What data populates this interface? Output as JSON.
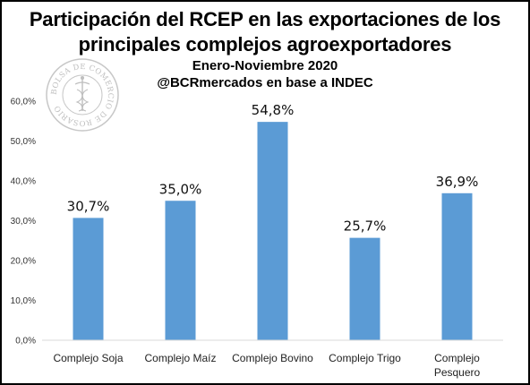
{
  "header": {
    "title_line1": "Participación del RCEP en las exportaciones de los",
    "title_line2": "principales complejos agroexportadores",
    "subtitle_line1": "Enero-Noviembre 2020",
    "subtitle_line2": "@BCRmercados en base a INDEC"
  },
  "logo": {
    "text": "BOLSA DE COMERCIO DE ROSARIO",
    "icon": "caduceus-seal-icon"
  },
  "colors": {
    "bar": "#5b9bd5",
    "axis": "#d9d9d9",
    "text": "#000000"
  },
  "chart_data": {
    "type": "bar",
    "title": "Participación del RCEP en las exportaciones de los principales complejos agroexportadores",
    "subtitle": "Enero-Noviembre 2020",
    "categories": [
      [
        "Complejo Soja"
      ],
      [
        "Complejo Maíz"
      ],
      [
        "Complejo Bovino"
      ],
      [
        "Complejo Trigo"
      ],
      [
        "Complejo",
        "Pesquero"
      ]
    ],
    "values": [
      30.7,
      35.0,
      54.8,
      25.7,
      36.9
    ],
    "data_labels": [
      "30,7%",
      "35,0%",
      "54,8%",
      "25,7%",
      "36,9%"
    ],
    "y_ticks": [
      "0,0%",
      "10,0%",
      "20,0%",
      "30,0%",
      "40,0%",
      "50,0%",
      "60,0%"
    ],
    "y_tick_values": [
      0,
      10,
      20,
      30,
      40,
      50,
      60
    ],
    "ylim": [
      0,
      60
    ],
    "grid": false,
    "legend": "none",
    "xlabel": "",
    "ylabel": ""
  }
}
